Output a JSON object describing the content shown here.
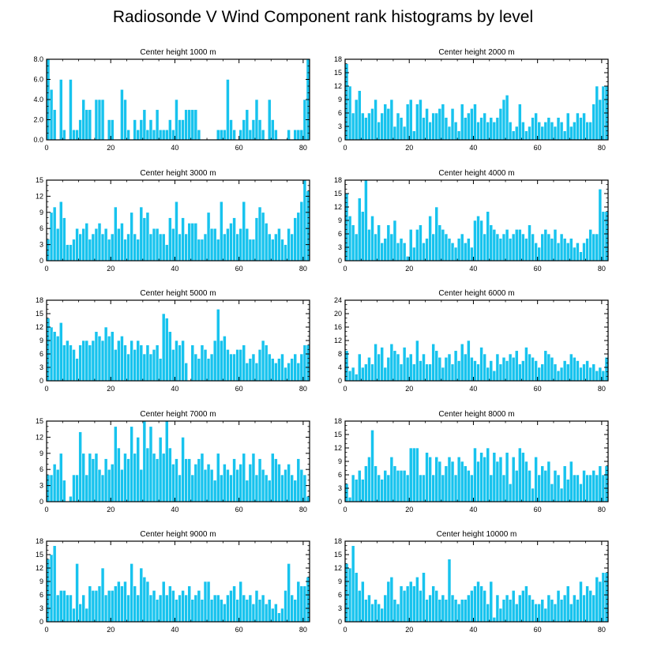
{
  "figure_title": "Radiosonde V Wind Component rank histograms by level",
  "colors": {
    "bar": "#17c3ee",
    "bar_edge": "#ffffff",
    "axis": "#000000"
  },
  "chart_data": [
    {
      "type": "bar",
      "title": "Center height 1000 m",
      "xlim": [
        0,
        82
      ],
      "ylim": [
        0,
        8
      ],
      "xticks": [
        0,
        20,
        40,
        60,
        80
      ],
      "yticks": [
        0,
        2,
        4,
        6,
        8
      ],
      "ytick_labels": [
        "0.0",
        "2.0",
        "4.0",
        "6.0",
        "8.0"
      ],
      "values": [
        8,
        5,
        3,
        0,
        6,
        1,
        0,
        6,
        1,
        1,
        2,
        4,
        3,
        3,
        0,
        4,
        4,
        4,
        0,
        2,
        2,
        0,
        0,
        5,
        4,
        1,
        0,
        2,
        1,
        2,
        3,
        1,
        2,
        1,
        3,
        1,
        1,
        1,
        2,
        1,
        4,
        2,
        2,
        3,
        3,
        3,
        3,
        1,
        0,
        0,
        0,
        0,
        0,
        1,
        1,
        1,
        6,
        2,
        1,
        0,
        1,
        2,
        3,
        1,
        2,
        4,
        2,
        1,
        0,
        4,
        2,
        1,
        0,
        0,
        0,
        1,
        0,
        1,
        1,
        1,
        4,
        8
      ]
    },
    {
      "type": "bar",
      "title": "Center height 2000 m",
      "xlim": [
        0,
        82
      ],
      "ylim": [
        0,
        18
      ],
      "xticks": [
        0,
        20,
        40,
        60,
        80
      ],
      "yticks": [
        0,
        3,
        6,
        9,
        12,
        15,
        18
      ],
      "ytick_labels": [
        "0",
        "3",
        "6",
        "9",
        "12",
        "15",
        "18"
      ],
      "values": [
        17,
        12,
        6,
        9,
        11,
        6,
        5,
        6,
        7,
        9,
        4,
        6,
        8,
        7,
        9,
        3,
        6,
        5,
        3,
        8,
        9,
        2,
        8,
        9,
        5,
        7,
        4,
        6,
        6,
        7,
        8,
        5,
        3,
        7,
        4,
        2,
        8,
        5,
        6,
        7,
        8,
        4,
        5,
        6,
        4,
        5,
        4,
        5,
        7,
        9,
        10,
        4,
        2,
        3,
        8,
        4,
        2,
        3,
        5,
        6,
        4,
        3,
        4,
        5,
        4,
        3,
        5,
        4,
        2,
        6,
        3,
        4,
        6,
        5,
        6,
        4,
        4,
        8,
        12,
        9,
        12,
        12
      ]
    },
    {
      "type": "bar",
      "title": "Center height 3000 m",
      "xlim": [
        0,
        82
      ],
      "ylim": [
        0,
        15
      ],
      "xticks": [
        0,
        20,
        40,
        60,
        80
      ],
      "yticks": [
        0,
        3,
        6,
        9,
        12,
        15
      ],
      "ytick_labels": [
        "0",
        "3",
        "6",
        "9",
        "12",
        "15"
      ],
      "values": [
        4,
        9,
        10,
        6,
        11,
        8,
        3,
        3,
        4,
        6,
        5,
        6,
        7,
        4,
        5,
        6,
        7,
        5,
        6,
        4,
        5,
        10,
        6,
        7,
        4,
        5,
        9,
        5,
        4,
        10,
        8,
        9,
        5,
        6,
        6,
        5,
        5,
        3,
        8,
        6,
        11,
        5,
        8,
        5,
        7,
        7,
        7,
        4,
        4,
        5,
        9,
        6,
        6,
        4,
        11,
        5,
        6,
        7,
        8,
        5,
        6,
        11,
        6,
        4,
        4,
        8,
        10,
        9,
        7,
        5,
        4,
        5,
        6,
        4,
        3,
        6,
        5,
        8,
        9,
        11,
        15,
        13
      ]
    },
    {
      "type": "bar",
      "title": "Center height 4000 m",
      "xlim": [
        0,
        82
      ],
      "ylim": [
        0,
        18
      ],
      "xticks": [
        0,
        20,
        40,
        60,
        80
      ],
      "yticks": [
        0,
        3,
        6,
        9,
        12,
        15,
        18
      ],
      "ytick_labels": [
        "0",
        "3",
        "6",
        "9",
        "12",
        "15",
        "18"
      ],
      "values": [
        15,
        10,
        8,
        6,
        14,
        11,
        18,
        7,
        10,
        6,
        8,
        4,
        5,
        8,
        6,
        9,
        4,
        5,
        4,
        1,
        7,
        3,
        7,
        8,
        4,
        5,
        10,
        6,
        12,
        8,
        7,
        6,
        5,
        4,
        3,
        5,
        6,
        4,
        5,
        3,
        9,
        10,
        9,
        6,
        11,
        8,
        7,
        6,
        5,
        6,
        7,
        5,
        6,
        7,
        7,
        6,
        5,
        8,
        6,
        4,
        3,
        6,
        7,
        6,
        5,
        7,
        4,
        6,
        5,
        4,
        5,
        3,
        4,
        2,
        4,
        5,
        7,
        6,
        6,
        16,
        11,
        11
      ]
    },
    {
      "type": "bar",
      "title": "Center height 5000 m",
      "xlim": [
        0,
        82
      ],
      "ylim": [
        0,
        18
      ],
      "xticks": [
        0,
        20,
        40,
        60,
        80
      ],
      "yticks": [
        0,
        3,
        6,
        9,
        12,
        15,
        18
      ],
      "ytick_labels": [
        "0",
        "3",
        "6",
        "9",
        "12",
        "15",
        "18"
      ],
      "values": [
        14,
        12,
        11,
        10,
        13,
        8,
        9,
        8,
        7,
        5,
        8,
        9,
        9,
        8,
        9,
        11,
        10,
        9,
        12,
        10,
        11,
        7,
        9,
        10,
        8,
        6,
        9,
        7,
        9,
        8,
        6,
        8,
        6,
        7,
        8,
        5,
        15,
        14,
        11,
        7,
        9,
        8,
        9,
        4,
        0,
        8,
        6,
        5,
        8,
        7,
        5,
        6,
        9,
        16,
        9,
        10,
        7,
        6,
        6,
        7,
        7,
        8,
        4,
        5,
        6,
        4,
        7,
        9,
        8,
        6,
        5,
        4,
        5,
        6,
        3,
        4,
        5,
        6,
        4,
        6,
        8,
        8
      ]
    },
    {
      "type": "bar",
      "title": "Center height 6000 m",
      "xlim": [
        0,
        82
      ],
      "ylim": [
        0,
        24
      ],
      "xticks": [
        0,
        20,
        40,
        60,
        80
      ],
      "yticks": [
        0,
        4,
        8,
        12,
        16,
        20,
        24
      ],
      "ytick_labels": [
        "0",
        "4",
        "8",
        "12",
        "16",
        "20",
        "24"
      ],
      "values": [
        9,
        3,
        4,
        2,
        8,
        4,
        5,
        7,
        5,
        11,
        8,
        10,
        4,
        7,
        11,
        9,
        8,
        5,
        10,
        7,
        8,
        5,
        12,
        6,
        8,
        5,
        5,
        11,
        9,
        7,
        4,
        7,
        8,
        5,
        9,
        6,
        11,
        8,
        12,
        7,
        6,
        5,
        10,
        8,
        4,
        6,
        3,
        8,
        5,
        7,
        6,
        8,
        7,
        9,
        5,
        6,
        10,
        8,
        7,
        6,
        4,
        5,
        9,
        8,
        7,
        5,
        3,
        4,
        6,
        5,
        8,
        7,
        6,
        4,
        5,
        6,
        4,
        5,
        3,
        4,
        3,
        7
      ]
    },
    {
      "type": "bar",
      "title": "Center height 7000 m",
      "xlim": [
        0,
        82
      ],
      "ylim": [
        0,
        15
      ],
      "xticks": [
        0,
        20,
        40,
        60,
        80
      ],
      "yticks": [
        0,
        3,
        6,
        9,
        12,
        15
      ],
      "ytick_labels": [
        "0",
        "3",
        "6",
        "9",
        "12",
        "15"
      ],
      "values": [
        5,
        5,
        7,
        6,
        9,
        4,
        0,
        1,
        5,
        5,
        13,
        9,
        5,
        9,
        8,
        9,
        6,
        5,
        8,
        6,
        7,
        14,
        10,
        6,
        9,
        8,
        14,
        9,
        12,
        6,
        15,
        10,
        14,
        9,
        8,
        12,
        9,
        15,
        10,
        7,
        8,
        5,
        12,
        8,
        8,
        5,
        7,
        8,
        9,
        6,
        7,
        6,
        4,
        9,
        5,
        7,
        6,
        5,
        8,
        6,
        7,
        9,
        4,
        7,
        9,
        5,
        8,
        6,
        5,
        4,
        9,
        8,
        7,
        5,
        6,
        7,
        5,
        4,
        8,
        6,
        5,
        1
      ]
    },
    {
      "type": "bar",
      "title": "Center height 8000 m",
      "xlim": [
        0,
        82
      ],
      "ylim": [
        0,
        18
      ],
      "xticks": [
        0,
        20,
        40,
        60,
        80
      ],
      "yticks": [
        0,
        3,
        6,
        9,
        12,
        15,
        18
      ],
      "ytick_labels": [
        "0",
        "3",
        "6",
        "9",
        "12",
        "15",
        "18"
      ],
      "values": [
        4,
        1,
        6,
        5,
        7,
        5,
        8,
        10,
        16,
        8,
        6,
        5,
        7,
        6,
        10,
        8,
        7,
        7,
        7,
        6,
        12,
        12,
        12,
        6,
        6,
        11,
        10,
        6,
        10,
        9,
        6,
        8,
        10,
        9,
        6,
        10,
        9,
        8,
        7,
        6,
        12,
        9,
        11,
        10,
        12,
        6,
        11,
        9,
        10,
        6,
        11,
        4,
        10,
        7,
        12,
        11,
        9,
        7,
        3,
        10,
        6,
        8,
        7,
        9,
        4,
        7,
        6,
        3,
        8,
        5,
        9,
        6,
        6,
        4,
        7,
        6,
        6,
        7,
        6,
        8,
        6,
        8
      ]
    },
    {
      "type": "bar",
      "title": "Center height 9000 m",
      "xlim": [
        0,
        82
      ],
      "ylim": [
        0,
        18
      ],
      "xticks": [
        0,
        20,
        40,
        60,
        80
      ],
      "yticks": [
        0,
        3,
        6,
        9,
        12,
        15,
        18
      ],
      "ytick_labels": [
        "0",
        "3",
        "6",
        "9",
        "12",
        "15",
        "18"
      ],
      "values": [
        14,
        15,
        17,
        6,
        7,
        7,
        6,
        6,
        3,
        13,
        4,
        6,
        3,
        8,
        7,
        7,
        8,
        12,
        6,
        7,
        7,
        8,
        9,
        8,
        9,
        6,
        13,
        8,
        6,
        12,
        10,
        9,
        6,
        7,
        5,
        6,
        9,
        6,
        8,
        7,
        5,
        6,
        7,
        6,
        8,
        5,
        6,
        7,
        5,
        9,
        9,
        5,
        6,
        6,
        5,
        4,
        6,
        7,
        8,
        5,
        9,
        6,
        5,
        6,
        4,
        7,
        5,
        6,
        4,
        5,
        3,
        4,
        2,
        3,
        7,
        13,
        6,
        5,
        9,
        8,
        8,
        10
      ]
    },
    {
      "type": "bar",
      "title": "Center height 10000 m",
      "xlim": [
        0,
        82
      ],
      "ylim": [
        0,
        18
      ],
      "xticks": [
        0,
        20,
        40,
        60,
        80
      ],
      "yticks": [
        0,
        3,
        6,
        9,
        12,
        15,
        18
      ],
      "ytick_labels": [
        "0",
        "3",
        "6",
        "9",
        "12",
        "15",
        "18"
      ],
      "values": [
        13,
        12,
        17,
        11,
        7,
        9,
        5,
        6,
        4,
        5,
        4,
        3,
        6,
        9,
        10,
        5,
        4,
        8,
        7,
        8,
        9,
        8,
        10,
        7,
        11,
        5,
        6,
        8,
        7,
        5,
        6,
        5,
        14,
        6,
        5,
        4,
        5,
        5,
        6,
        7,
        8,
        9,
        8,
        7,
        4,
        9,
        1,
        6,
        3,
        5,
        6,
        5,
        7,
        4,
        6,
        7,
        8,
        6,
        5,
        4,
        4,
        5,
        3,
        6,
        5,
        4,
        7,
        5,
        6,
        8,
        4,
        6,
        5,
        9,
        6,
        8,
        7,
        6,
        10,
        9,
        11,
        11
      ]
    }
  ]
}
